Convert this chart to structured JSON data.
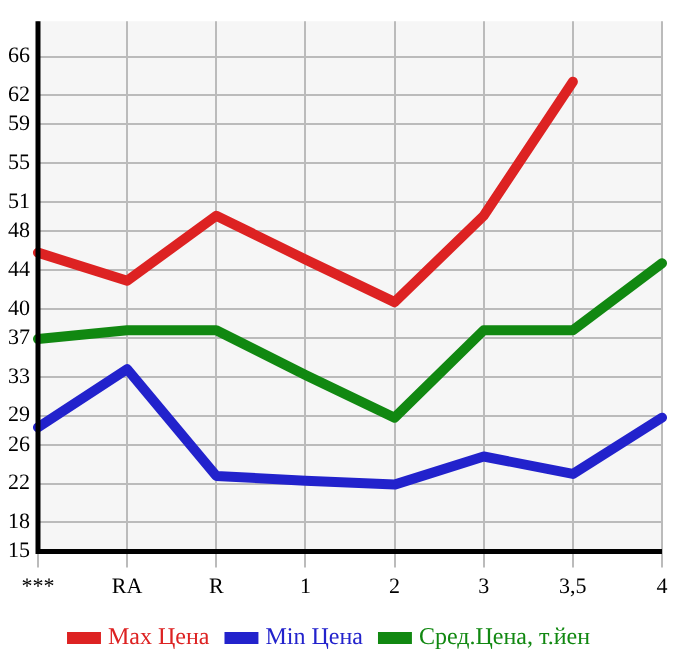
{
  "chart_data": {
    "type": "line",
    "categories": [
      "***",
      "RA",
      "R",
      "1",
      "2",
      "3",
      "3,5",
      "4"
    ],
    "series": [
      {
        "name": "Max Цена",
        "color": "#dd2222",
        "values": [
          45.8,
          42.9,
          49.6,
          45.1,
          40.7,
          49.6,
          63.4,
          null
        ]
      },
      {
        "name": "Min Цена",
        "color": "#2222cc",
        "values": [
          27.8,
          33.8,
          22.8,
          22.3,
          21.9,
          24.8,
          23.0,
          28.8
        ]
      },
      {
        "name": "Сред.Цена, т.йен",
        "color": "#118811",
        "values": [
          36.9,
          37.8,
          37.8,
          33.2,
          28.8,
          37.8,
          37.8,
          44.7
        ]
      }
    ],
    "ylim": [
      15,
      69.64
    ],
    "yticks": [
      15,
      18,
      22,
      26,
      29,
      33,
      37,
      40,
      44,
      48,
      51,
      55,
      59,
      62,
      66
    ],
    "grid": true,
    "legend": "bottom",
    "marker": "none",
    "line_style": "solid"
  }
}
